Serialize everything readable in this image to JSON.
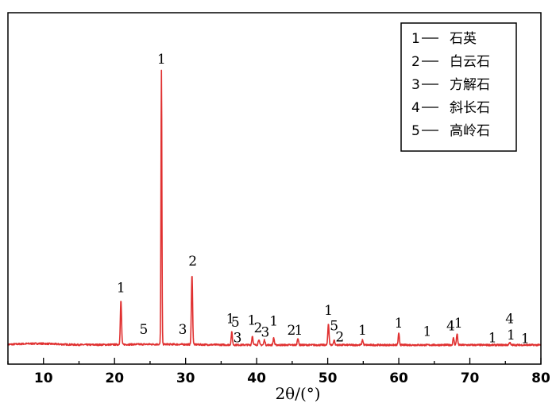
{
  "chart_data": {
    "type": "line",
    "title": "",
    "xlabel": "2θ/(°)",
    "ylabel": "",
    "xlim": [
      5,
      80
    ],
    "ylim": [
      0,
      100
    ],
    "x_ticks": [
      10,
      20,
      30,
      40,
      50,
      60,
      70,
      80
    ],
    "grid": false,
    "legend_position": "top-right",
    "line_color": "#e03030",
    "legend": [
      {
        "num": "1",
        "text": "石英"
      },
      {
        "num": "2",
        "text": "白云石"
      },
      {
        "num": "3",
        "text": "方解石"
      },
      {
        "num": "4",
        "text": "斜长石"
      },
      {
        "num": "5",
        "text": "高岭石"
      }
    ],
    "peaks": [
      {
        "x": 20.9,
        "y": 15.5
      },
      {
        "x": 26.6,
        "y": 97.0
      },
      {
        "x": 30.9,
        "y": 25.0
      },
      {
        "x": 36.5,
        "y": 4.5
      },
      {
        "x": 39.4,
        "y": 3.2
      },
      {
        "x": 40.3,
        "y": 2.0
      },
      {
        "x": 41.1,
        "y": 1.8
      },
      {
        "x": 42.4,
        "y": 2.5
      },
      {
        "x": 45.8,
        "y": 2.5
      },
      {
        "x": 50.1,
        "y": 7.5
      },
      {
        "x": 50.9,
        "y": 1.8
      },
      {
        "x": 54.9,
        "y": 1.8
      },
      {
        "x": 60.0,
        "y": 4.0
      },
      {
        "x": 67.7,
        "y": 2.5
      },
      {
        "x": 68.2,
        "y": 4.0
      },
      {
        "x": 75.6,
        "y": 1.0
      }
    ],
    "annotations": [
      {
        "text": "1",
        "x": 20.9,
        "y": 19.0
      },
      {
        "text": "5",
        "x": 24.1,
        "y": 4.2
      },
      {
        "text": "1",
        "x": 26.6,
        "y": 100.0
      },
      {
        "text": "3",
        "x": 29.6,
        "y": 4.2
      },
      {
        "text": "2",
        "x": 31.0,
        "y": 28.5
      },
      {
        "text": "1",
        "x": 36.3,
        "y": 8.0
      },
      {
        "text": "5",
        "x": 37.0,
        "y": 6.8
      },
      {
        "text": "3",
        "x": 37.3,
        "y": 1.2
      },
      {
        "text": "1",
        "x": 39.3,
        "y": 7.5
      },
      {
        "text": "2",
        "x": 40.2,
        "y": 4.8
      },
      {
        "text": "3",
        "x": 41.2,
        "y": 3.2
      },
      {
        "text": "1",
        "x": 42.4,
        "y": 7.2
      },
      {
        "text": "2",
        "x": 44.9,
        "y": 4.0
      },
      {
        "text": "1",
        "x": 45.9,
        "y": 4.0
      },
      {
        "text": "1",
        "x": 50.1,
        "y": 11.0
      },
      {
        "text": "5",
        "x": 50.9,
        "y": 5.5
      },
      {
        "text": "2",
        "x": 51.7,
        "y": 1.5
      },
      {
        "text": "1",
        "x": 54.9,
        "y": 4.0
      },
      {
        "text": "1",
        "x": 60.0,
        "y": 6.5
      },
      {
        "text": "1",
        "x": 64.0,
        "y": 3.5
      },
      {
        "text": "4",
        "x": 67.3,
        "y": 5.5
      },
      {
        "text": "1",
        "x": 68.4,
        "y": 6.5
      },
      {
        "text": "1",
        "x": 73.2,
        "y": 1.2
      },
      {
        "text": "4",
        "x": 75.6,
        "y": 8.0
      },
      {
        "text": "1",
        "x": 75.8,
        "y": 2.2
      },
      {
        "text": "1",
        "x": 77.8,
        "y": 1.0
      }
    ]
  }
}
